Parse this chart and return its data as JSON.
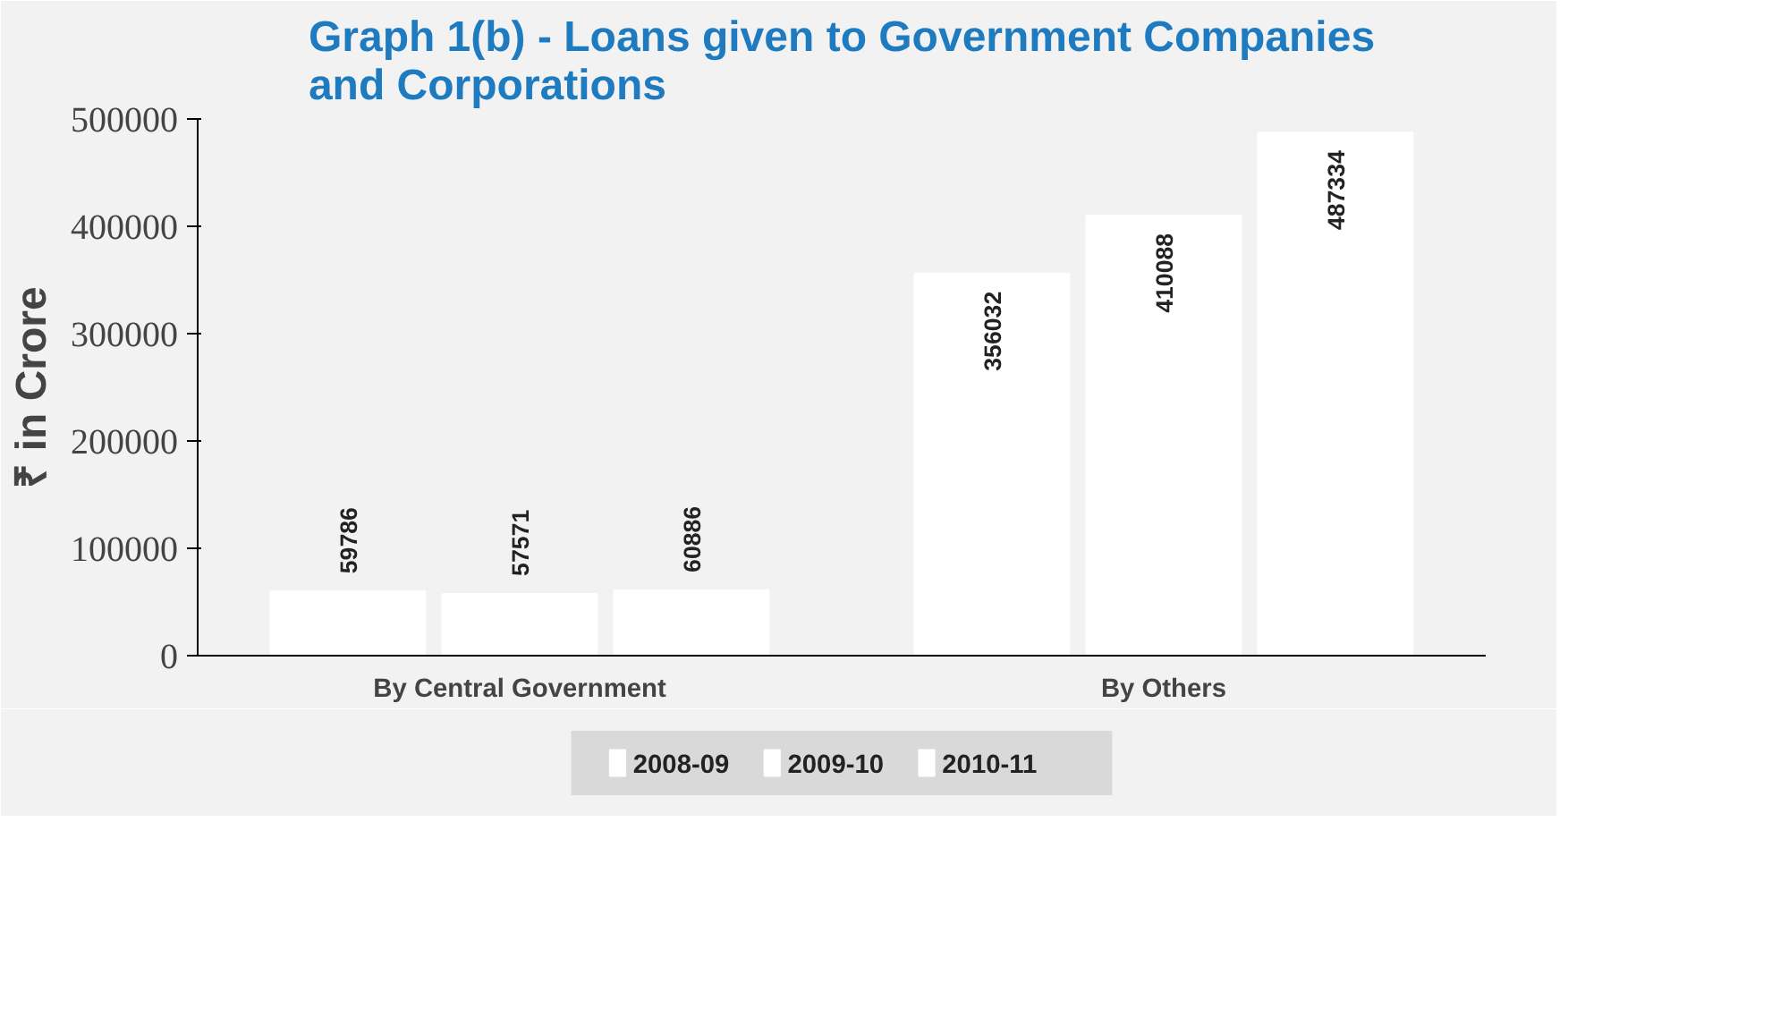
{
  "chart_data": {
    "type": "bar",
    "title": "Graph 1(b) - Loans given to Government Companies\nand Corporations",
    "ylabel": "₹ in Crore",
    "categories": [
      "By Central Government",
      "By Others"
    ],
    "series": [
      {
        "name": "2008-09",
        "color": "#ffffff",
        "values": [
          59786,
          356032
        ]
      },
      {
        "name": "2009-10",
        "color": "#ffffff",
        "values": [
          57571,
          410088
        ]
      },
      {
        "name": "2010-11",
        "color": "#ffffff",
        "values": [
          60886,
          487334
        ]
      }
    ],
    "ylim": [
      0,
      500000
    ],
    "yticks": [
      0,
      100000,
      200000,
      300000,
      400000,
      500000
    ],
    "data_labels": true,
    "legend": "bottom",
    "grid": false
  }
}
